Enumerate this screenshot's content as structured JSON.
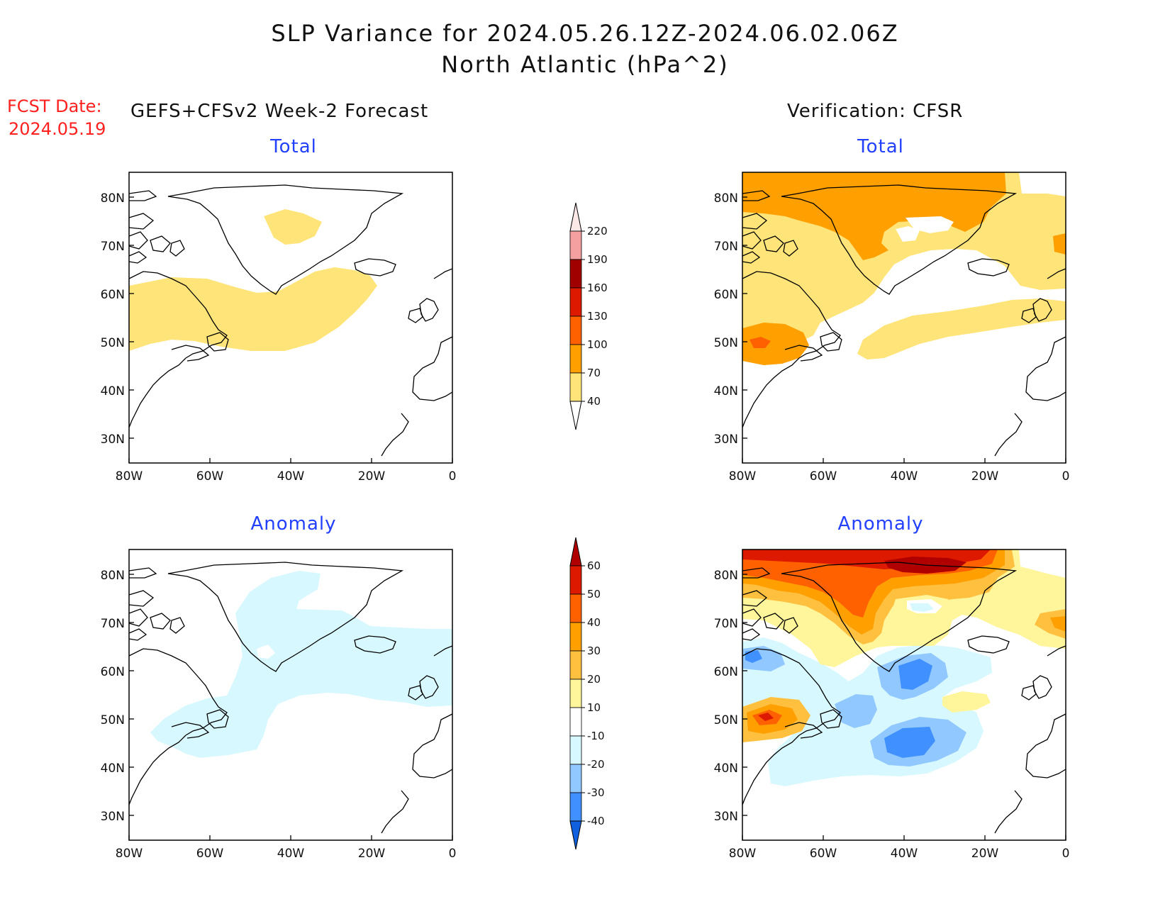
{
  "header": {
    "title_line1": "SLP Variance for 2024.05.26.12Z-2024.06.02.06Z",
    "title_line2": "North Atlantic (hPa^2)"
  },
  "fcst_label": "FCST Date:",
  "fcst_date": "2024.05.19",
  "left_header": "GEFS+CFSv2 Week-2 Forecast",
  "right_header": "Verification: CFSR",
  "panels": {
    "fc_total": "Total",
    "vf_total": "Total",
    "fc_anom": "Anomaly",
    "vf_anom": "Anomaly"
  },
  "axes": {
    "lat_labels": [
      "80N",
      "70N",
      "60N",
      "50N",
      "40N",
      "30N"
    ],
    "lon_labels": [
      "80W",
      "60W",
      "40W",
      "20W",
      "0"
    ]
  },
  "colorbar_total": {
    "labels": [
      "220",
      "190",
      "160",
      "130",
      "100",
      "70",
      "40"
    ],
    "colors": [
      "#fde8e8",
      "#f4a0a0",
      "#a00000",
      "#dd1a00",
      "#ff6000",
      "#ff9f00",
      "#ffe47a"
    ]
  },
  "colorbar_anomaly": {
    "labels": [
      "60",
      "50",
      "40",
      "30",
      "20",
      "10",
      "-10",
      "-20",
      "-30",
      "-40"
    ],
    "colors": [
      "#b00000",
      "#dd1a00",
      "#ff6000",
      "#ff9f00",
      "#ffc040",
      "#fff59a",
      "#ffffff",
      "#d8f8ff",
      "#90c8ff",
      "#4090ff",
      "#1060e0"
    ]
  }
}
